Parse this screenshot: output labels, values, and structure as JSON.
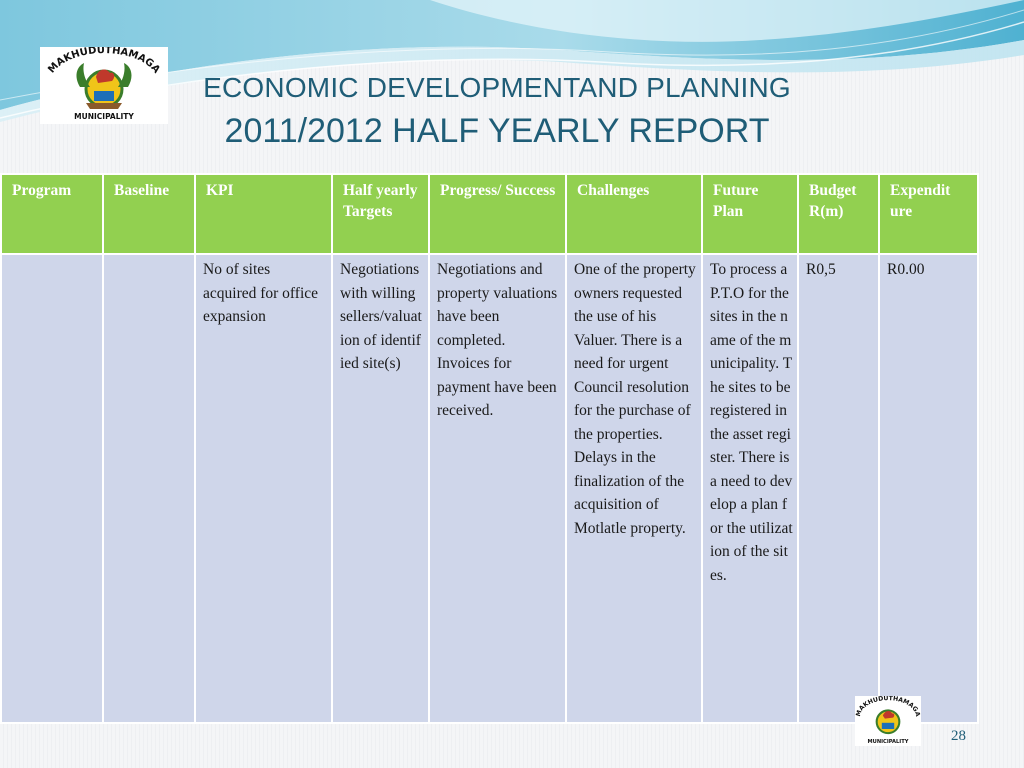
{
  "header": {
    "title_line1": "ECONOMIC DEVELOPMENTAND PLANNING",
    "title_line2": "2011/2012 HALF YEARLY REPORT"
  },
  "logo": {
    "text_top": "MAKHUDUTHAMAGA",
    "text_bottom": "MUNICIPALITY"
  },
  "table": {
    "headers": [
      "Program",
      "Baseline",
      "KPI",
      "Half yearly Targets",
      "Progress/ Success",
      "Challenges",
      "Future Plan",
      "Budget R(m)",
      "Expendit ure"
    ],
    "rows": [
      {
        "program": "",
        "baseline": "",
        "kpi": "No of sites acquired for office expansion",
        "targets": "Negotiations with willing sellers/valuation of identified site(s)",
        "progress": "Negotiations and property valuations have been completed. Invoices for payment have been received.",
        "challenges": "One of the property owners requested the use of his Valuer. There is a need for urgent Council resolution for the purchase of the properties. Delays in the finalization of the acquisition of Motlatle property.",
        "future_plan": "To process a P.T.O for the sites in the name of the municipality. The sites to be registered in the asset register. There is a need to develop a plan for the utilization of the sites.",
        "budget": "R0,5",
        "expenditure": "R0.00"
      }
    ]
  },
  "page_number": "28",
  "colors": {
    "header_green": "#92d050",
    "body_blue": "#cfd6ea",
    "title_teal": "#1f5d77"
  }
}
